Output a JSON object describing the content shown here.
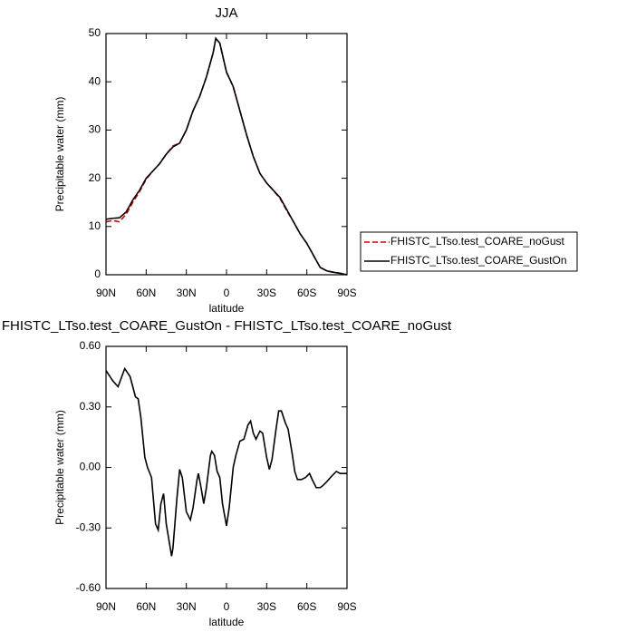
{
  "chart_data": [
    {
      "type": "line",
      "title": "JJA",
      "xlabel": "latitude",
      "ylabel": "Precipitable water (mm)",
      "x": [
        90,
        85,
        80,
        75,
        70,
        65,
        60,
        55,
        50,
        45,
        40,
        35,
        30,
        25,
        20,
        15,
        10,
        8,
        5,
        0,
        -5,
        -10,
        -15,
        -20,
        -25,
        -30,
        -35,
        -40,
        -45,
        -50,
        -55,
        -60,
        -65,
        -70,
        -75,
        -80,
        -85,
        -90
      ],
      "series": [
        {
          "name": "FHISTC_LTso.test_COARE_noGust",
          "color": "#d40000",
          "linestyle": "dashed",
          "values": [
            11,
            11.2,
            11,
            12.5,
            15,
            17.2,
            19.8,
            21.5,
            23,
            25,
            26.7,
            27.3,
            30,
            34,
            37,
            41,
            46,
            49,
            48,
            42,
            39,
            34,
            29,
            24.5,
            21,
            19,
            17.5,
            15.8,
            13.3,
            11,
            8.5,
            6.5,
            4,
            1.5,
            0.8,
            0.5,
            0.3,
            0
          ]
        },
        {
          "name": "FHISTC_LTso.test_COARE_GustOn",
          "color": "#000000",
          "linestyle": "solid",
          "values": [
            11.5,
            11.7,
            11.8,
            13,
            15.5,
            17.5,
            20,
            21.5,
            23,
            25,
            26.5,
            27.3,
            30,
            34,
            37,
            41,
            46,
            49,
            48,
            42,
            39,
            34,
            29,
            24.5,
            21,
            19,
            17.5,
            16,
            13.5,
            11,
            8.5,
            6.5,
            4,
            1.5,
            0.8,
            0.5,
            0.3,
            0
          ]
        }
      ],
      "xlim": [
        90,
        -90
      ],
      "xticks": [
        {
          "value": 90,
          "label": "90N"
        },
        {
          "value": 60,
          "label": "60N"
        },
        {
          "value": 30,
          "label": "30N"
        },
        0,
        {
          "value": -30,
          "label": "30S"
        },
        {
          "value": -60,
          "label": "60S"
        },
        {
          "value": -90,
          "label": "90S"
        }
      ],
      "ylim": [
        0,
        50
      ],
      "yticks": [
        0,
        10,
        20,
        30,
        40,
        50
      ],
      "legend": "right"
    },
    {
      "type": "line",
      "title": "FHISTC_LTso.test_COARE_GustOn - FHISTC_LTso.test_COARE_noGust",
      "xlabel": "latitude",
      "ylabel": "Precipitable water (mm)",
      "x": [
        90,
        85,
        81,
        76,
        72,
        70,
        68,
        66,
        64,
        61,
        59,
        56,
        53,
        51,
        49,
        47,
        45,
        41,
        40,
        37,
        35,
        33,
        30,
        27,
        25,
        22,
        21,
        19,
        17,
        15,
        12,
        11,
        9,
        7,
        5,
        3,
        0,
        -2,
        -5,
        -7,
        -10,
        -13,
        -16,
        -18,
        -20,
        -22,
        -25,
        -27,
        -30,
        -32,
        -34,
        -37,
        -39,
        -41,
        -44,
        -46,
        -49,
        -51,
        -53,
        -56,
        -59,
        -62,
        -64,
        -67,
        -70,
        -72,
        -75,
        -79,
        -82,
        -85,
        -90
      ],
      "values": [
        0.48,
        0.43,
        0.4,
        0.49,
        0.45,
        0.4,
        0.35,
        0.34,
        0.25,
        0.05,
        0.0,
        -0.05,
        -0.28,
        -0.31,
        -0.18,
        -0.13,
        -0.28,
        -0.44,
        -0.4,
        -0.15,
        -0.01,
        -0.05,
        -0.22,
        -0.26,
        -0.2,
        -0.06,
        -0.03,
        -0.1,
        -0.18,
        -0.1,
        0.06,
        0.08,
        0.06,
        -0.02,
        -0.05,
        -0.18,
        -0.29,
        -0.2,
        0.0,
        0.06,
        0.13,
        0.14,
        0.21,
        0.23,
        0.17,
        0.14,
        0.18,
        0.17,
        0.05,
        -0.01,
        0.04,
        0.19,
        0.28,
        0.28,
        0.22,
        0.19,
        0.07,
        -0.02,
        -0.06,
        -0.06,
        -0.05,
        -0.03,
        -0.06,
        -0.1,
        -0.1,
        -0.09,
        -0.07,
        -0.04,
        -0.02,
        -0.03,
        -0.03
      ],
      "color": "#000000",
      "xlim": [
        90,
        -90
      ],
      "xticks": [
        {
          "value": 90,
          "label": "90N"
        },
        {
          "value": 60,
          "label": "60N"
        },
        {
          "value": 30,
          "label": "30N"
        },
        0,
        {
          "value": -30,
          "label": "30S"
        },
        {
          "value": -60,
          "label": "60S"
        },
        {
          "value": -90,
          "label": "90S"
        }
      ],
      "ylim": [
        -0.6,
        0.6
      ],
      "yticks": [
        {
          "value": -0.6,
          "label": "-0.60"
        },
        {
          "value": -0.3,
          "label": "-0.30"
        },
        {
          "value": 0,
          "label": "0.00"
        },
        {
          "value": 0.3,
          "label": "0.30"
        },
        {
          "value": 0.6,
          "label": "0.60"
        }
      ]
    }
  ]
}
